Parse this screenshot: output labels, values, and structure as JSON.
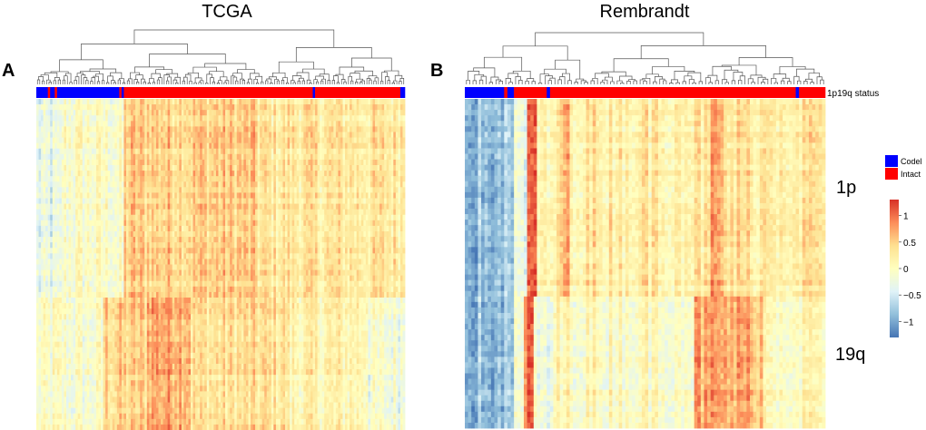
{
  "chart_data": {
    "type": "heatmap",
    "panels": [
      {
        "letter": "A",
        "title": "TCGA",
        "n_samples": 160,
        "status_blocks": [
          {
            "status": "Codel",
            "start": 0,
            "end": 5
          },
          {
            "status": "Intact",
            "start": 5,
            "end": 6
          },
          {
            "status": "Codel",
            "start": 6,
            "end": 8
          },
          {
            "status": "Intact",
            "start": 8,
            "end": 9
          },
          {
            "status": "Codel",
            "start": 9,
            "end": 36
          },
          {
            "status": "Intact",
            "start": 36,
            "end": 37
          },
          {
            "status": "Codel",
            "start": 37,
            "end": 38
          },
          {
            "status": "Intact",
            "start": 38,
            "end": 120
          },
          {
            "status": "Codel",
            "start": 120,
            "end": 121
          },
          {
            "status": "Intact",
            "start": 121,
            "end": 158
          },
          {
            "status": "Codel",
            "start": 158,
            "end": 160
          }
        ],
        "profile_1p": [
          {
            "from": 0.0,
            "to": 0.07,
            "value": -0.35
          },
          {
            "from": 0.07,
            "to": 0.22,
            "value": -0.05
          },
          {
            "from": 0.22,
            "to": 0.24,
            "value": -0.15
          },
          {
            "from": 0.24,
            "to": 0.6,
            "value": 0.5
          },
          {
            "from": 0.6,
            "to": 1.0,
            "value": 0.3
          }
        ],
        "profile_19q": [
          {
            "from": 0.0,
            "to": 0.18,
            "value": -0.1
          },
          {
            "from": 0.18,
            "to": 0.3,
            "value": 0.45
          },
          {
            "from": 0.3,
            "to": 0.42,
            "value": 0.75
          },
          {
            "from": 0.42,
            "to": 0.68,
            "value": 0.35
          },
          {
            "from": 0.68,
            "to": 0.9,
            "value": 0.15
          },
          {
            "from": 0.9,
            "to": 1.0,
            "value": -0.15
          }
        ]
      },
      {
        "letter": "B",
        "title": "Rembrandt",
        "n_samples": 110,
        "status_blocks": [
          {
            "status": "Codel",
            "start": 0,
            "end": 12
          },
          {
            "status": "Intact",
            "start": 12,
            "end": 13
          },
          {
            "status": "Codel",
            "start": 13,
            "end": 15
          },
          {
            "status": "Intact",
            "start": 15,
            "end": 25
          },
          {
            "status": "Codel",
            "start": 25,
            "end": 26
          },
          {
            "status": "Intact",
            "start": 26,
            "end": 101
          },
          {
            "status": "Codel",
            "start": 101,
            "end": 102
          },
          {
            "status": "Intact",
            "start": 102,
            "end": 110
          }
        ],
        "profile_1p": [
          {
            "from": 0.0,
            "to": 0.14,
            "value": -0.85
          },
          {
            "from": 0.14,
            "to": 0.17,
            "value": -0.3
          },
          {
            "from": 0.17,
            "to": 0.2,
            "value": 0.9
          },
          {
            "from": 0.2,
            "to": 0.26,
            "value": 0.1
          },
          {
            "from": 0.26,
            "to": 0.29,
            "value": 0.6
          },
          {
            "from": 0.29,
            "to": 0.68,
            "value": 0.25
          },
          {
            "from": 0.68,
            "to": 0.72,
            "value": 0.65
          },
          {
            "from": 0.72,
            "to": 1.0,
            "value": 0.3
          }
        ],
        "profile_19q": [
          {
            "from": 0.0,
            "to": 0.14,
            "value": -0.85
          },
          {
            "from": 0.14,
            "to": 0.16,
            "value": -0.2
          },
          {
            "from": 0.16,
            "to": 0.19,
            "value": 1.0
          },
          {
            "from": 0.19,
            "to": 0.25,
            "value": -0.25
          },
          {
            "from": 0.25,
            "to": 0.64,
            "value": 0.05
          },
          {
            "from": 0.64,
            "to": 0.83,
            "value": 0.7
          },
          {
            "from": 0.83,
            "to": 1.0,
            "value": 0.1
          }
        ]
      }
    ],
    "annotation_label": "1p19q status",
    "row_groups": [
      "1p",
      "19q"
    ],
    "row_split": 0.6,
    "legend_status": [
      {
        "label": "Codel",
        "color": "#0000ff"
      },
      {
        "label": "Intact",
        "color": "#ff0000"
      }
    ],
    "colorbar": {
      "range": [
        -1.3,
        1.3
      ],
      "ticks": [
        "1",
        "0.5",
        "0",
        "−0.5",
        "−1"
      ],
      "tick_values": [
        1,
        0.5,
        0,
        -0.5,
        -1
      ],
      "colors": [
        "#4575b4",
        "#91bfdb",
        "#e0f3f8",
        "#ffffbf",
        "#fee090",
        "#fc8d59",
        "#d73027"
      ]
    }
  }
}
